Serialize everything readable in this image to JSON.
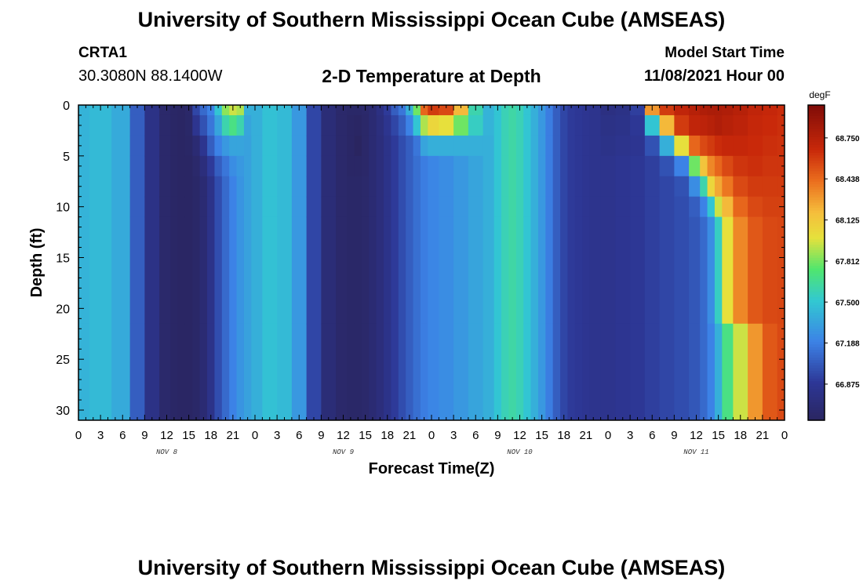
{
  "header": {
    "title": "University of Southern Mississippi Ocean Cube (AMSEAS)",
    "station_id": "CRTA1",
    "coordinates": "30.3080N  88.1400W",
    "subtitle": "2-D Temperature at Depth",
    "model_start_label": "Model Start Time",
    "model_start_value": "11/08/2021 Hour 00"
  },
  "footer": {
    "title": "University of Southern Mississippi Ocean Cube (AMSEAS)"
  },
  "chart_data": {
    "type": "heatmap",
    "title": "2-D Temperature at Depth",
    "xlabel": "Forecast Time(Z)",
    "ylabel": "Depth (ft)",
    "x_ticks": [
      "0",
      "3",
      "6",
      "9",
      "12",
      "15",
      "18",
      "21",
      "0",
      "3",
      "6",
      "9",
      "12",
      "15",
      "18",
      "21",
      "0",
      "3",
      "6",
      "9",
      "12",
      "15",
      "18",
      "21",
      "0",
      "3",
      "6",
      "9",
      "12",
      "15",
      "18",
      "21",
      "0"
    ],
    "xlim_hours": [
      0,
      96
    ],
    "day_labels": [
      {
        "label": "NOV 8",
        "hour": 12
      },
      {
        "label": "NOV 9",
        "hour": 36
      },
      {
        "label": "NOV 10",
        "hour": 60
      },
      {
        "label": "NOV 11",
        "hour": 84
      }
    ],
    "y_ticks": [
      0,
      5,
      10,
      15,
      20,
      25,
      30
    ],
    "ylim_ft": [
      0,
      31
    ],
    "colorbar": {
      "unit": "degF",
      "range": [
        66.6,
        69.0
      ],
      "ticks": [
        "68.750",
        "68.438",
        "68.125",
        "67.812",
        "67.500",
        "67.188",
        "66.875"
      ]
    },
    "column_hours": [
      0,
      3,
      6,
      8,
      10,
      12,
      13,
      14,
      15,
      16,
      17,
      18,
      19,
      20,
      21,
      22,
      23,
      24,
      26,
      28,
      30,
      32,
      34,
      36,
      37,
      38,
      39,
      40,
      41,
      42,
      43,
      44,
      45,
      46,
      47,
      48,
      50,
      52,
      54,
      56,
      57,
      58,
      59,
      60,
      61,
      62,
      63,
      64,
      65,
      66,
      67,
      68,
      69,
      70,
      72,
      74,
      76,
      78,
      80,
      82,
      84,
      85,
      86,
      87,
      88,
      90,
      92,
      94,
      96
    ],
    "depth_rows_ft": [
      0,
      2,
      4,
      6,
      8,
      10,
      12,
      31
    ],
    "temperature_degF": [
      [
        67.42,
        67.42,
        67.42,
        67.42,
        67.42,
        67.42,
        67.42,
        67.42
      ],
      [
        67.45,
        67.45,
        67.45,
        67.45,
        67.45,
        67.45,
        67.45,
        67.45
      ],
      [
        67.38,
        67.38,
        67.38,
        67.38,
        67.38,
        67.38,
        67.38,
        67.38
      ],
      [
        67.05,
        67.05,
        67.05,
        67.05,
        67.05,
        67.05,
        67.05,
        67.05
      ],
      [
        66.8,
        66.8,
        66.8,
        66.8,
        66.8,
        66.8,
        66.8,
        66.8
      ],
      [
        66.66,
        66.66,
        66.66,
        66.66,
        66.66,
        66.66,
        66.66,
        66.66
      ],
      [
        66.63,
        66.63,
        66.63,
        66.63,
        66.63,
        66.63,
        66.63,
        66.63
      ],
      [
        66.62,
        66.62,
        66.62,
        66.62,
        66.62,
        66.62,
        66.62,
        66.62
      ],
      [
        66.65,
        66.64,
        66.63,
        66.62,
        66.62,
        66.62,
        66.62,
        66.62
      ],
      [
        66.95,
        66.85,
        66.7,
        66.66,
        66.64,
        66.64,
        66.64,
        66.64
      ],
      [
        67.1,
        67.0,
        66.85,
        66.75,
        66.7,
        66.7,
        66.7,
        66.7
      ],
      [
        67.2,
        67.15,
        67.05,
        66.9,
        66.82,
        66.82,
        66.82,
        66.82
      ],
      [
        67.5,
        67.35,
        67.2,
        67.05,
        66.98,
        66.98,
        66.98,
        66.98
      ],
      [
        67.85,
        67.6,
        67.3,
        67.15,
        67.1,
        67.1,
        67.1,
        67.1
      ],
      [
        67.95,
        67.7,
        67.35,
        67.25,
        67.2,
        67.2,
        67.2,
        67.2
      ],
      [
        67.9,
        67.6,
        67.35,
        67.3,
        67.28,
        67.28,
        67.28,
        67.28
      ],
      [
        67.4,
        67.35,
        67.34,
        67.34,
        67.34,
        67.34,
        67.34,
        67.34
      ],
      [
        67.4,
        67.4,
        67.4,
        67.4,
        67.4,
        67.4,
        67.4,
        67.4
      ],
      [
        67.48,
        67.48,
        67.48,
        67.48,
        67.48,
        67.48,
        67.48,
        67.48
      ],
      [
        67.45,
        67.45,
        67.45,
        67.45,
        67.45,
        67.45,
        67.45,
        67.45
      ],
      [
        67.3,
        67.3,
        67.3,
        67.3,
        67.3,
        67.3,
        67.3,
        67.3
      ],
      [
        66.95,
        66.95,
        66.95,
        66.95,
        66.95,
        66.95,
        66.95,
        66.95
      ],
      [
        66.72,
        66.72,
        66.72,
        66.72,
        66.72,
        66.72,
        66.72,
        66.72
      ],
      [
        66.66,
        66.66,
        66.66,
        66.66,
        66.66,
        66.66,
        66.66,
        66.66
      ],
      [
        66.64,
        66.63,
        66.63,
        66.63,
        66.64,
        66.64,
        66.64,
        66.64
      ],
      [
        66.64,
        66.62,
        66.6,
        66.63,
        66.64,
        66.64,
        66.64,
        66.64
      ],
      [
        66.66,
        66.65,
        66.65,
        66.65,
        66.66,
        66.66,
        66.66,
        66.66
      ],
      [
        66.7,
        66.7,
        66.7,
        66.7,
        66.7,
        66.7,
        66.7,
        66.7
      ],
      [
        66.78,
        66.76,
        66.75,
        66.75,
        66.75,
        66.75,
        66.75,
        66.75
      ],
      [
        66.9,
        66.85,
        66.82,
        66.82,
        66.82,
        66.82,
        66.82,
        66.82
      ],
      [
        67.05,
        66.95,
        66.9,
        66.9,
        66.9,
        66.9,
        66.9,
        66.9
      ],
      [
        67.15,
        67.05,
        66.98,
        66.98,
        66.98,
        66.98,
        66.98,
        66.98
      ],
      [
        67.4,
        67.2,
        67.05,
        67.05,
        67.05,
        67.05,
        67.05,
        67.05
      ],
      [
        67.8,
        67.5,
        67.15,
        67.12,
        67.12,
        67.12,
        67.12,
        67.12
      ],
      [
        68.45,
        67.9,
        67.35,
        67.18,
        67.18,
        67.18,
        67.18,
        67.18
      ],
      [
        68.6,
        68.05,
        67.4,
        67.22,
        67.22,
        67.22,
        67.22,
        67.22
      ],
      [
        68.55,
        68.0,
        67.4,
        67.25,
        67.25,
        67.25,
        67.25,
        67.25
      ],
      [
        68.2,
        67.8,
        67.4,
        67.3,
        67.3,
        67.3,
        67.3,
        67.3
      ],
      [
        67.6,
        67.55,
        67.4,
        67.35,
        67.35,
        67.35,
        67.35,
        67.35
      ],
      [
        67.42,
        67.42,
        67.4,
        67.4,
        67.4,
        67.4,
        67.4,
        67.4
      ],
      [
        67.5,
        67.5,
        67.5,
        67.5,
        67.5,
        67.5,
        67.5,
        67.5
      ],
      [
        67.58,
        67.58,
        67.58,
        67.58,
        67.58,
        67.58,
        67.58,
        67.58
      ],
      [
        67.62,
        67.62,
        67.62,
        67.62,
        67.62,
        67.62,
        67.62,
        67.62
      ],
      [
        67.58,
        67.58,
        67.58,
        67.58,
        67.58,
        67.58,
        67.58,
        67.58
      ],
      [
        67.5,
        67.5,
        67.5,
        67.5,
        67.5,
        67.5,
        67.5,
        67.5
      ],
      [
        67.4,
        67.4,
        67.4,
        67.4,
        67.4,
        67.4,
        67.4,
        67.4
      ],
      [
        67.3,
        67.3,
        67.3,
        67.3,
        67.3,
        67.3,
        67.3,
        67.3
      ],
      [
        67.18,
        67.18,
        67.18,
        67.18,
        67.18,
        67.18,
        67.18,
        67.18
      ],
      [
        67.05,
        67.05,
        67.05,
        67.05,
        67.05,
        67.05,
        67.05,
        67.05
      ],
      [
        66.95,
        66.95,
        66.95,
        66.95,
        66.95,
        66.95,
        66.95,
        66.95
      ],
      [
        66.9,
        66.9,
        66.9,
        66.9,
        66.9,
        66.9,
        66.9,
        66.9
      ],
      [
        66.88,
        66.88,
        66.88,
        66.88,
        66.88,
        66.88,
        66.88,
        66.88
      ],
      [
        66.86,
        66.86,
        66.86,
        66.86,
        66.86,
        66.86,
        66.86,
        66.86
      ],
      [
        66.84,
        66.84,
        66.84,
        66.84,
        66.84,
        66.84,
        66.84,
        66.84
      ],
      [
        66.78,
        66.8,
        66.82,
        66.84,
        66.84,
        66.84,
        66.84,
        66.84
      ],
      [
        66.8,
        66.82,
        66.84,
        66.86,
        66.86,
        66.86,
        66.86,
        66.86
      ],
      [
        66.92,
        66.88,
        66.86,
        66.88,
        66.88,
        66.88,
        66.88,
        66.88
      ],
      [
        68.3,
        67.5,
        67.0,
        66.92,
        66.92,
        66.92,
        66.92,
        66.92
      ],
      [
        68.6,
        68.2,
        67.4,
        67.0,
        66.95,
        66.95,
        66.95,
        66.95
      ],
      [
        68.7,
        68.6,
        68.0,
        67.2,
        67.0,
        66.98,
        66.98,
        66.98
      ],
      [
        68.75,
        68.7,
        68.45,
        67.8,
        67.25,
        67.05,
        67.02,
        67.02
      ],
      [
        68.78,
        68.72,
        68.55,
        68.15,
        67.6,
        67.2,
        67.1,
        67.1
      ],
      [
        68.8,
        68.75,
        68.6,
        68.35,
        68.05,
        67.5,
        67.25,
        67.2
      ],
      [
        68.8,
        68.78,
        68.65,
        68.45,
        68.25,
        67.95,
        67.55,
        67.4
      ],
      [
        68.78,
        68.75,
        68.68,
        68.55,
        68.4,
        68.2,
        68.0,
        67.7
      ],
      [
        68.75,
        68.72,
        68.68,
        68.62,
        68.55,
        68.45,
        68.35,
        67.95
      ],
      [
        68.7,
        68.68,
        68.66,
        68.64,
        68.6,
        68.55,
        68.5,
        68.3
      ],
      [
        68.68,
        68.66,
        68.64,
        68.62,
        68.6,
        68.58,
        68.55,
        68.5
      ],
      [
        68.65,
        68.64,
        68.63,
        68.62,
        68.6,
        68.58,
        68.56,
        68.55
      ]
    ]
  }
}
